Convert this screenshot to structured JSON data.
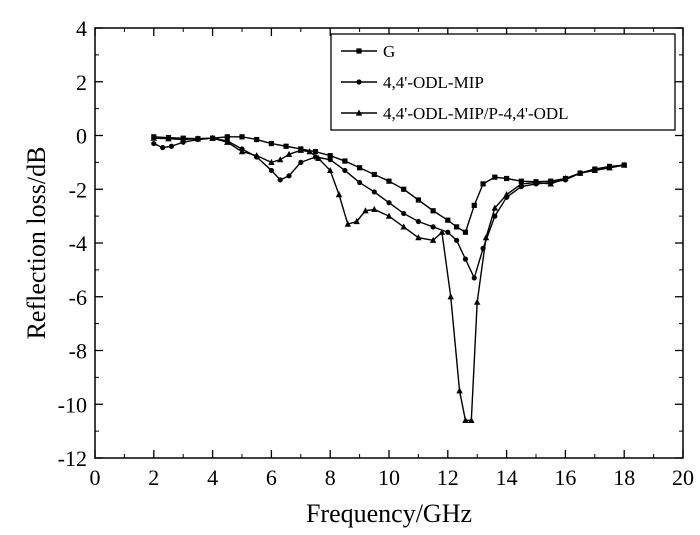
{
  "chart_data": {
    "type": "line",
    "title": "",
    "xlabel": "Frequency/GHz",
    "ylabel": "Reflection loss/dB",
    "xlim": [
      0,
      20
    ],
    "ylim": [
      -12,
      4
    ],
    "xticks": [
      0,
      2,
      4,
      6,
      8,
      10,
      12,
      14,
      16,
      18,
      20
    ],
    "yticks": [
      4,
      2,
      0,
      -2,
      -4,
      -6,
      -8,
      -10,
      -12
    ],
    "grid": false,
    "legend_position": "top-right",
    "series": [
      {
        "name": "G",
        "marker": "square",
        "x": [
          2.0,
          2.5,
          3.0,
          3.5,
          4.0,
          4.5,
          5.0,
          5.5,
          6.0,
          6.5,
          7.0,
          7.5,
          8.0,
          8.5,
          9.0,
          9.5,
          10.0,
          10.5,
          11.0,
          11.5,
          12.0,
          12.3,
          12.6,
          12.9,
          13.2,
          13.6,
          14.0,
          14.5,
          15.0,
          15.5,
          16.0,
          16.5,
          17.0,
          17.5,
          18.0
        ],
        "y": [
          -0.05,
          -0.08,
          -0.1,
          -0.12,
          -0.1,
          -0.05,
          -0.05,
          -0.15,
          -0.3,
          -0.4,
          -0.5,
          -0.6,
          -0.75,
          -0.95,
          -1.2,
          -1.45,
          -1.7,
          -2.0,
          -2.4,
          -2.8,
          -3.15,
          -3.4,
          -3.6,
          -2.6,
          -1.8,
          -1.55,
          -1.6,
          -1.7,
          -1.72,
          -1.7,
          -1.6,
          -1.4,
          -1.25,
          -1.15,
          -1.1
        ]
      },
      {
        "name": "4,4'-ODL-MIP",
        "marker": "circle",
        "x": [
          2.0,
          2.3,
          2.6,
          3.0,
          3.5,
          4.0,
          4.5,
          5.0,
          5.5,
          6.0,
          6.3,
          6.6,
          7.0,
          7.5,
          8.0,
          8.5,
          9.0,
          9.5,
          10.0,
          10.5,
          11.0,
          11.5,
          12.0,
          12.3,
          12.6,
          12.9,
          13.2,
          13.6,
          14.0,
          14.5,
          15.0,
          15.5,
          16.0,
          16.5,
          17.0,
          17.5,
          18.0
        ],
        "y": [
          -0.3,
          -0.45,
          -0.4,
          -0.25,
          -0.15,
          -0.1,
          -0.2,
          -0.5,
          -0.8,
          -1.3,
          -1.65,
          -1.5,
          -1.0,
          -0.8,
          -0.9,
          -1.3,
          -1.75,
          -2.1,
          -2.5,
          -2.9,
          -3.2,
          -3.4,
          -3.6,
          -3.9,
          -4.6,
          -5.3,
          -4.2,
          -3.0,
          -2.3,
          -1.9,
          -1.8,
          -1.75,
          -1.65,
          -1.4,
          -1.25,
          -1.2,
          -1.1
        ]
      },
      {
        "name": "4,4'-ODL-MIP/P-4,4'-ODL",
        "marker": "triangle",
        "x": [
          2.0,
          2.5,
          3.0,
          3.5,
          4.0,
          4.5,
          5.0,
          5.5,
          6.0,
          6.3,
          6.6,
          7.0,
          7.3,
          7.6,
          8.0,
          8.3,
          8.6,
          8.9,
          9.2,
          9.5,
          10.0,
          10.5,
          11.0,
          11.5,
          11.8,
          12.1,
          12.4,
          12.6,
          12.8,
          13.0,
          13.3,
          13.6,
          14.0,
          14.5,
          15.0,
          15.5,
          16.0,
          16.5,
          17.0,
          17.5,
          18.0
        ],
        "y": [
          -0.1,
          -0.12,
          -0.15,
          -0.12,
          -0.1,
          -0.25,
          -0.6,
          -0.75,
          -1.0,
          -0.9,
          -0.7,
          -0.55,
          -0.6,
          -0.85,
          -1.3,
          -2.2,
          -3.3,
          -3.2,
          -2.8,
          -2.75,
          -3.0,
          -3.4,
          -3.8,
          -3.9,
          -3.6,
          -6.0,
          -9.5,
          -10.6,
          -10.6,
          -6.2,
          -3.8,
          -2.7,
          -2.2,
          -1.8,
          -1.75,
          -1.8,
          -1.6,
          -1.4,
          -1.3,
          -1.2,
          -1.1
        ]
      }
    ]
  }
}
